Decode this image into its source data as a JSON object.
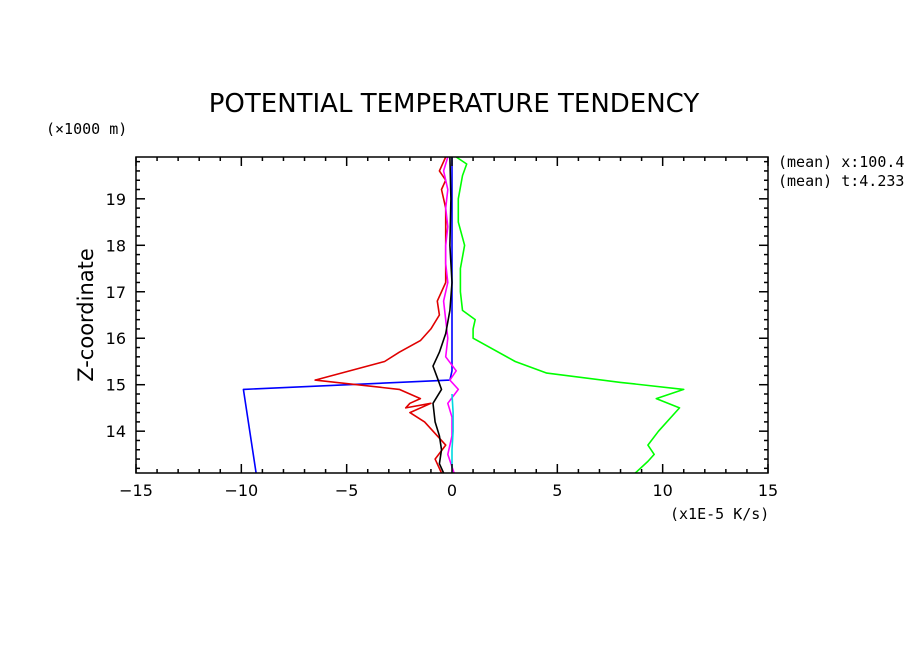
{
  "chart_data": {
    "type": "line",
    "title": "POTENTIAL TEMPERATURE TENDENCY",
    "ylabel": "Z-coordinate",
    "y_unit": "(×1000 m)",
    "x_unit": "(x1E-5 K/s)",
    "xlim": [
      -15,
      15
    ],
    "ylim": [
      13.1,
      19.9
    ],
    "x_ticks": [
      -15,
      -10,
      -5,
      0,
      5,
      10,
      15
    ],
    "x_tick_labels": [
      "−15",
      "−10",
      "−5",
      "0",
      "5",
      "10",
      "15"
    ],
    "y_ticks": [
      14,
      15,
      16,
      17,
      18,
      19
    ],
    "y_tick_labels": [
      "14",
      "15",
      "16",
      "17",
      "18",
      "19"
    ],
    "annotations": [
      "(mean) x:100.4",
      "(mean) t:4.233"
    ],
    "series": [
      {
        "color": "#00ff00",
        "points": [
          [
            8.7,
            13.1
          ],
          [
            9.3,
            13.35
          ],
          [
            9.6,
            13.5
          ],
          [
            9.3,
            13.7
          ],
          [
            9.8,
            14.0
          ],
          [
            10.8,
            14.5
          ],
          [
            9.7,
            14.7
          ],
          [
            11.0,
            14.9
          ],
          [
            8.0,
            15.05
          ],
          [
            4.5,
            15.25
          ],
          [
            3.0,
            15.5
          ],
          [
            1.0,
            16.0
          ],
          [
            1.0,
            16.2
          ],
          [
            1.1,
            16.4
          ],
          [
            0.5,
            16.6
          ],
          [
            0.4,
            17.0
          ],
          [
            0.4,
            17.5
          ],
          [
            0.6,
            18.0
          ],
          [
            0.3,
            18.5
          ],
          [
            0.3,
            19.0
          ],
          [
            0.5,
            19.5
          ],
          [
            0.7,
            19.75
          ],
          [
            0.2,
            19.9
          ]
        ]
      },
      {
        "color": "#0000ff",
        "points": [
          [
            -9.3,
            13.1
          ],
          [
            -9.9,
            14.9
          ],
          [
            -0.1,
            15.1
          ],
          [
            0.0,
            15.3
          ],
          [
            0.0,
            16.0
          ],
          [
            0.0,
            17.0
          ],
          [
            0.0,
            18.0
          ],
          [
            0.0,
            19.0
          ],
          [
            0.0,
            19.9
          ]
        ]
      },
      {
        "color": "#e00000",
        "points": [
          [
            -0.5,
            13.1
          ],
          [
            -0.8,
            13.4
          ],
          [
            -0.3,
            13.7
          ],
          [
            -1.3,
            14.2
          ],
          [
            -2.0,
            14.4
          ],
          [
            -1.0,
            14.6
          ],
          [
            -2.2,
            14.5
          ],
          [
            -2.0,
            14.6
          ],
          [
            -1.5,
            14.7
          ],
          [
            -2.5,
            14.9
          ],
          [
            -6.5,
            15.1
          ],
          [
            -3.2,
            15.5
          ],
          [
            -2.5,
            15.7
          ],
          [
            -1.5,
            15.95
          ],
          [
            -1.0,
            16.2
          ],
          [
            -0.6,
            16.5
          ],
          [
            -0.7,
            16.8
          ],
          [
            -0.3,
            17.2
          ],
          [
            -0.3,
            17.6
          ],
          [
            -0.3,
            18.0
          ],
          [
            -0.3,
            18.4
          ],
          [
            -0.3,
            18.8
          ],
          [
            -0.5,
            19.2
          ],
          [
            -0.3,
            19.4
          ],
          [
            -0.6,
            19.6
          ],
          [
            -0.3,
            19.9
          ]
        ]
      },
      {
        "color": "#ff00ff",
        "points": [
          [
            0.1,
            13.1
          ],
          [
            -0.2,
            13.5
          ],
          [
            0.0,
            13.9
          ],
          [
            0.0,
            14.3
          ],
          [
            -0.2,
            14.6
          ],
          [
            0.3,
            14.9
          ],
          [
            -0.1,
            15.1
          ],
          [
            0.2,
            15.3
          ],
          [
            -0.3,
            15.6
          ],
          [
            -0.2,
            16.0
          ],
          [
            -0.3,
            16.4
          ],
          [
            -0.4,
            16.8
          ],
          [
            -0.2,
            17.2
          ],
          [
            -0.3,
            17.6
          ],
          [
            -0.3,
            18.0
          ],
          [
            -0.2,
            18.4
          ],
          [
            -0.3,
            18.8
          ],
          [
            -0.2,
            19.2
          ],
          [
            -0.4,
            19.6
          ],
          [
            -0.2,
            19.9
          ]
        ]
      },
      {
        "color": "#00d8e0",
        "points": [
          [
            0.0,
            13.2
          ],
          [
            0.0,
            13.6
          ],
          [
            0.05,
            14.0
          ],
          [
            0.05,
            14.4
          ],
          [
            0.0,
            14.8
          ]
        ]
      },
      {
        "color": "#000000",
        "points": [
          [
            -0.4,
            13.1
          ],
          [
            -0.6,
            13.3
          ],
          [
            -0.5,
            13.6
          ],
          [
            -0.6,
            13.9
          ],
          [
            -0.8,
            14.2
          ],
          [
            -0.9,
            14.6
          ],
          [
            -0.5,
            14.9
          ],
          [
            -0.7,
            15.15
          ],
          [
            -0.9,
            15.4
          ],
          [
            -0.6,
            15.7
          ],
          [
            -0.3,
            16.1
          ],
          [
            -0.1,
            16.6
          ],
          [
            0.0,
            17.2
          ],
          [
            -0.1,
            18.0
          ],
          [
            -0.05,
            19.0
          ],
          [
            -0.1,
            19.9
          ]
        ]
      }
    ]
  }
}
